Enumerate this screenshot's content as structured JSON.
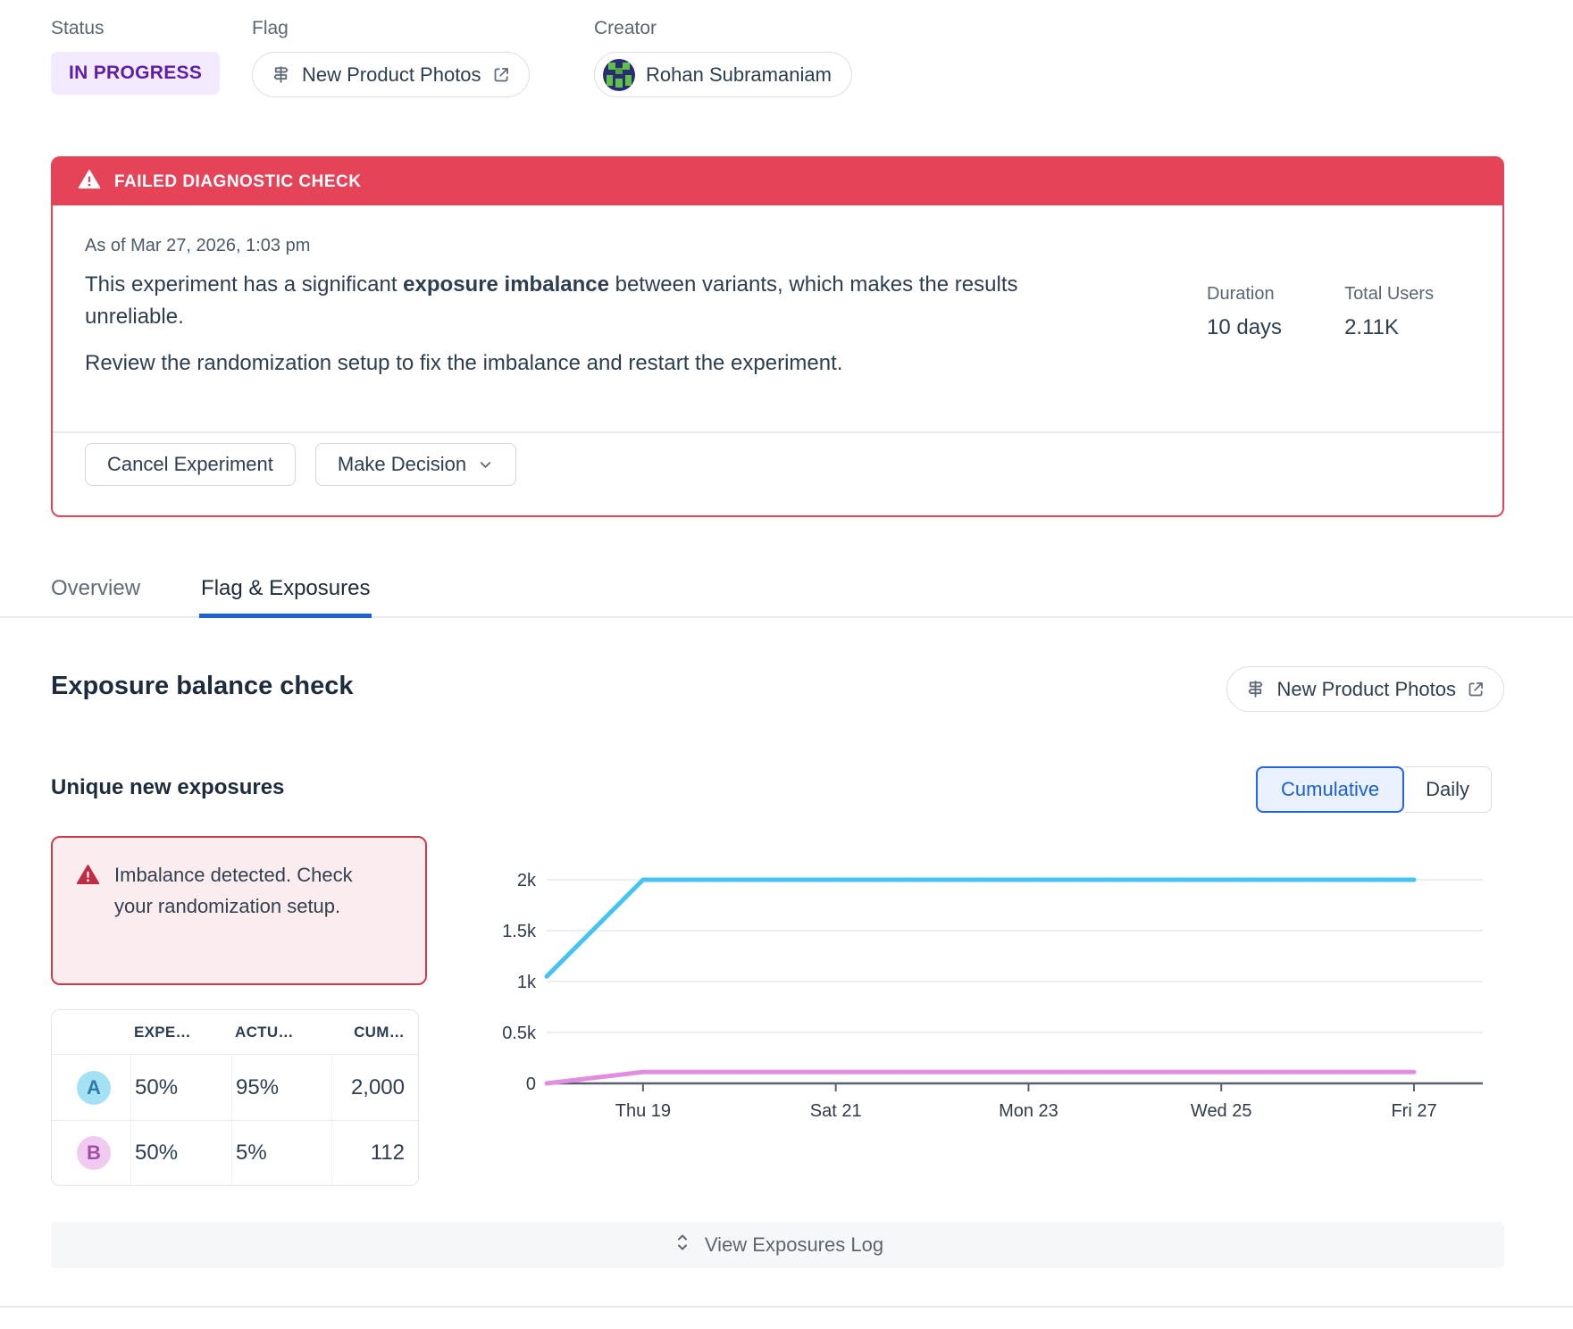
{
  "colors": {
    "status_badge_bg": "#F3EAFE",
    "status_badge_text": "#5E1EA6",
    "danger": "#E54458",
    "danger_dark": "#BE2D43",
    "danger_bg_soft": "#FBEDEF",
    "accent_blue": "#2563EB",
    "tab_underline": "#2160CF",
    "variant_a_bg": "#A5E1F5",
    "variant_a_text": "#2C7FA3",
    "variant_b_bg": "#F0CBEF",
    "variant_b_text": "#A34FA8"
  },
  "header": {
    "status_label": "Status",
    "status_value": "IN PROGRESS",
    "flag_label": "Flag",
    "flag_value": "New Product Photos",
    "creator_label": "Creator",
    "creator_value": "Rohan Subramaniam"
  },
  "alert": {
    "title": "FAILED DIAGNOSTIC CHECK",
    "as_of": "As of Mar 27, 2026, 1:03 pm",
    "message_pre": "This experiment has a significant ",
    "message_bold": "exposure imbalance",
    "message_post": " between variants, which makes the results unreliable.",
    "message_line2": "Review the randomization setup to fix the imbalance and restart the experiment.",
    "duration_label": "Duration",
    "duration_value": "10 days",
    "total_users_label": "Total Users",
    "total_users_value": "2.11K",
    "cancel_button": "Cancel Experiment",
    "decision_button": "Make Decision"
  },
  "tabs": [
    {
      "label": "Overview",
      "active": false
    },
    {
      "label": "Flag & Exposures",
      "active": true
    }
  ],
  "section": {
    "title": "Exposure balance check",
    "flag_button": "New Product Photos",
    "subsection_title": "Unique new exposures",
    "toggle": {
      "options": [
        "Cumulative",
        "Daily"
      ],
      "selected": "Cumulative"
    },
    "warning_line1": "Imbalance detected.",
    "warning_line2": "Check your randomization setup."
  },
  "table": {
    "headers": [
      "EXPE…",
      "ACTU…",
      "CUM…"
    ],
    "rows": [
      {
        "variant": "A",
        "expected": "50%",
        "actual": "95%",
        "cumulative": "2,000"
      },
      {
        "variant": "B",
        "expected": "50%",
        "actual": "5%",
        "cumulative": "112"
      }
    ]
  },
  "chart_data": {
    "type": "line",
    "title": "Unique new exposures (Cumulative)",
    "x_tick_labels": [
      "Thu 19",
      "Sat 21",
      "Mon 23",
      "Wed 25",
      "Fri 27"
    ],
    "x_tick_day_index": [
      1,
      3,
      5,
      7,
      9
    ],
    "x_day_count": 10,
    "ylim": [
      0,
      2000
    ],
    "y_ticks": [
      {
        "value": 0,
        "label": "0"
      },
      {
        "value": 500,
        "label": "0.5k"
      },
      {
        "value": 1000,
        "label": "1k"
      },
      {
        "value": 1500,
        "label": "1.5k"
      },
      {
        "value": 2000,
        "label": "2k"
      }
    ],
    "grid": true,
    "legend_position": "none",
    "series": [
      {
        "name": "Variant A",
        "color": "#45C4F4",
        "values": [
          1050,
          2000,
          2000,
          2000,
          2000,
          2000,
          2000,
          2000,
          2000,
          2000
        ]
      },
      {
        "name": "Variant B",
        "color": "#E08EE0",
        "values": [
          0,
          112,
          112,
          112,
          112,
          112,
          112,
          112,
          112,
          112
        ]
      }
    ]
  },
  "footer": {
    "view_log": "View Exposures Log"
  }
}
